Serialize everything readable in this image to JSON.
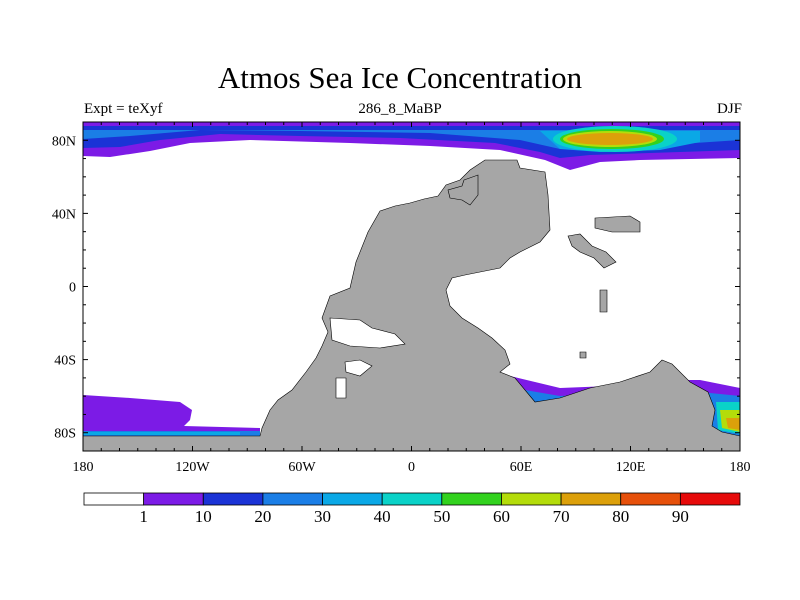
{
  "title": "Atmos Sea Ice Concentration",
  "subtitle_left": "Expt = teXyf",
  "subtitle_center": "286_8_MaBP",
  "subtitle_right": "DJF",
  "colors": {
    "land": "#a6a6a6",
    "ocean": "#ffffff",
    "frame": "#000000"
  },
  "chart_data": {
    "type": "heatmap",
    "title": "Atmos Sea Ice Concentration",
    "x_range": [
      -180,
      180
    ],
    "y_range": [
      -90,
      90
    ],
    "x_ticks": [
      {
        "value": -180,
        "label": "180"
      },
      {
        "value": -120,
        "label": "120W"
      },
      {
        "value": -60,
        "label": "60W"
      },
      {
        "value": 0,
        "label": "0"
      },
      {
        "value": 60,
        "label": "60E"
      },
      {
        "value": 120,
        "label": "120E"
      },
      {
        "value": 180,
        "label": "180"
      }
    ],
    "y_ticks": [
      {
        "value": 80,
        "label": "80N"
      },
      {
        "value": 40,
        "label": "40N"
      },
      {
        "value": 0,
        "label": "0"
      },
      {
        "value": -40,
        "label": "40S"
      },
      {
        "value": -80,
        "label": "80S"
      }
    ],
    "colorbar": {
      "levels": [
        "1",
        "10",
        "20",
        "30",
        "40",
        "50",
        "60",
        "70",
        "80",
        "90"
      ],
      "colors": [
        "#ffffff",
        "#7c1be6",
        "#1b33d6",
        "#1b7ee6",
        "#0aa8e6",
        "#0ad2c8",
        "#32d21e",
        "#b4dc0a",
        "#dca00a",
        "#e6500a",
        "#e60a0a"
      ]
    }
  }
}
